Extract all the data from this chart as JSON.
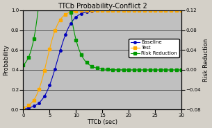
{
  "title": "TTCb Probability-Conflict 2",
  "xlabel": "TTCb (sec)",
  "ylabel_left": "Probability",
  "ylabel_right": "Risk Reduction",
  "xlim": [
    0,
    30
  ],
  "ylim_left": [
    0.0,
    1.0
  ],
  "ylim_right": [
    -0.08,
    0.12
  ],
  "yticks_left": [
    0.0,
    0.2,
    0.4,
    0.6,
    0.8,
    1.0
  ],
  "yticks_right": [
    -0.08,
    -0.04,
    0.0,
    0.04,
    0.08,
    0.12
  ],
  "xticks": [
    0,
    5,
    10,
    15,
    20,
    25,
    30
  ],
  "background_color": "#c0c0c0",
  "fig_background": "#d4d0c8",
  "baseline_color": "#0000bb",
  "test_color": "#ffaa00",
  "risk_color": "#009900",
  "legend_labels": [
    "Baseline",
    "Test",
    "Risk Reduction"
  ],
  "title_fontsize": 7,
  "axis_fontsize": 6,
  "tick_fontsize": 5,
  "legend_fontsize": 5
}
